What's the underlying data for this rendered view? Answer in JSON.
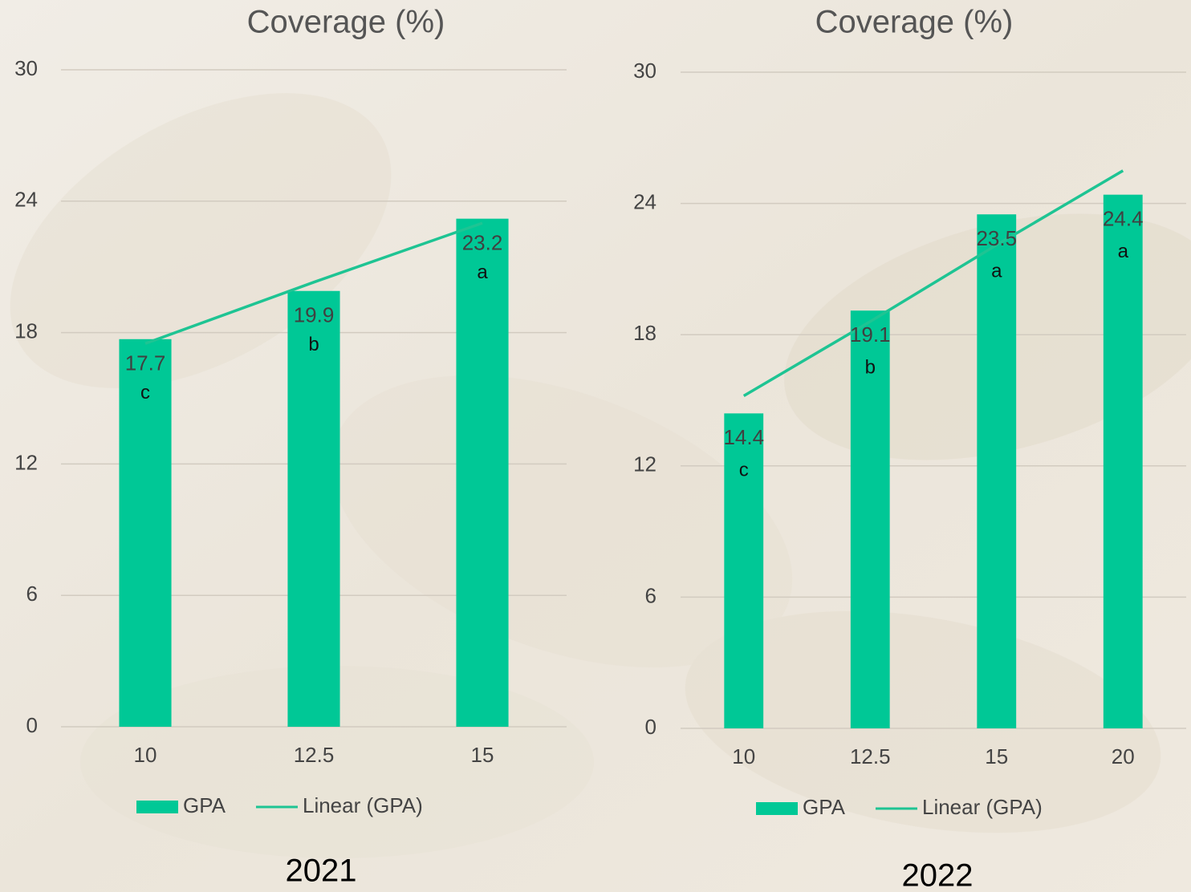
{
  "chart_data": [
    {
      "type": "bar",
      "title": "Coverage (%)",
      "caption": "2021",
      "categories": [
        "10",
        "12.5",
        "15"
      ],
      "series": [
        {
          "name": "GPA",
          "type": "bar",
          "color": "#00c896",
          "values": [
            17.7,
            19.9,
            23.2
          ]
        },
        {
          "name": "Linear (GPA)",
          "type": "line",
          "color": "#1ec493",
          "values": [
            17.5,
            20.3,
            23.0
          ]
        }
      ],
      "annotations": [
        "c",
        "b",
        "a"
      ],
      "ylim": [
        0,
        30
      ],
      "yticks": [
        0,
        6,
        12,
        18,
        24,
        30
      ],
      "grid": true,
      "legend": "bottom"
    },
    {
      "type": "bar",
      "title": "Coverage (%)",
      "caption": "2022",
      "categories": [
        "10",
        "12.5",
        "15",
        "20"
      ],
      "series": [
        {
          "name": "GPA",
          "type": "bar",
          "color": "#00c896",
          "values": [
            14.4,
            19.1,
            23.5,
            24.4
          ]
        },
        {
          "name": "Linear (GPA)",
          "type": "line",
          "color": "#1ec493",
          "values": [
            15.2,
            18.6,
            22.1,
            25.5
          ]
        }
      ],
      "annotations": [
        "c",
        "b",
        "a",
        "a"
      ],
      "ylim": [
        0,
        30
      ],
      "yticks": [
        0,
        6,
        12,
        18,
        24,
        30
      ],
      "grid": true,
      "legend": "bottom"
    }
  ]
}
